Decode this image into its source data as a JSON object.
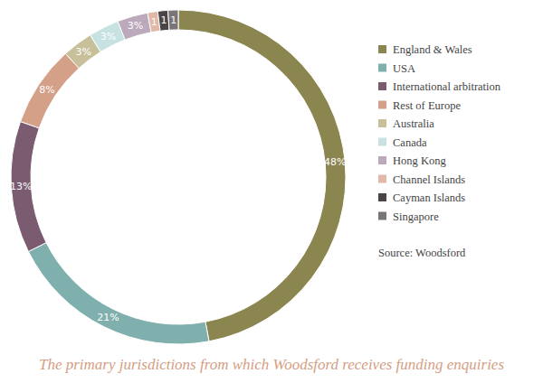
{
  "chart_data": {
    "type": "donut",
    "title": "The primary jurisdictions from which Woodsford receives funding enquiries",
    "annotations": [
      "Source: Woodsford"
    ],
    "categories": [
      "England & Wales",
      "USA",
      "International arbitration",
      "Rest of Europe",
      "Australia",
      "Canada",
      "Hong Kong",
      "Channel Islands",
      "Cayman Islands",
      "Singapore"
    ],
    "values": [
      48,
      21,
      13,
      8,
      3,
      3,
      3,
      1,
      1,
      1
    ],
    "value_labels": [
      "48%",
      "21%",
      "13%",
      "8%",
      "3%",
      "3%",
      "3%",
      "1",
      "1",
      "1"
    ],
    "colors": [
      "#8b8550",
      "#7fb0ad",
      "#7a5b70",
      "#d4a088",
      "#c8c09a",
      "#c8e2e2",
      "#bca9bc",
      "#e2b8a8",
      "#4a4446",
      "#7a7577"
    ],
    "data_labels": true,
    "legend": "right"
  }
}
